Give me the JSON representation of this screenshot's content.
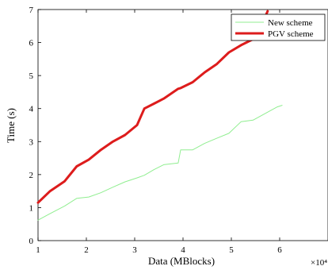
{
  "chart_data": {
    "type": "line",
    "xlabel": "Data (MBlocks)",
    "ylabel": "Time (s)",
    "x_multiplier_label": "×10⁴",
    "xlim": [
      1,
      7
    ],
    "ylim": [
      0,
      7
    ],
    "xticks": [
      1,
      2,
      3,
      4,
      5,
      6
    ],
    "yticks": [
      0,
      1,
      2,
      3,
      4,
      5,
      6,
      7
    ],
    "legend_position": "top-right",
    "grid": false,
    "series": [
      {
        "name": "New scheme",
        "color": "#90ee90",
        "stroke_width_class": "thin",
        "x": [
          1.0,
          1.25,
          1.55,
          1.8,
          2.05,
          2.3,
          2.55,
          2.8,
          3.05,
          3.2,
          3.4,
          3.6,
          3.9,
          3.95,
          4.2,
          4.45,
          4.7,
          4.95,
          5.2,
          5.45,
          5.7,
          5.95,
          6.05
        ],
        "y": [
          0.62,
          0.82,
          1.05,
          1.28,
          1.32,
          1.45,
          1.62,
          1.78,
          1.9,
          1.98,
          2.15,
          2.3,
          2.35,
          2.75,
          2.75,
          2.95,
          3.1,
          3.25,
          3.6,
          3.65,
          3.85,
          4.05,
          4.1
        ]
      },
      {
        "name": "PGV scheme",
        "color": "#dd1c1c",
        "stroke_width_class": "thick",
        "x": [
          1.0,
          1.25,
          1.55,
          1.8,
          2.05,
          2.3,
          2.55,
          2.8,
          3.05,
          3.2,
          3.4,
          3.6,
          3.9,
          3.95,
          4.2,
          4.45,
          4.7,
          4.95,
          5.2,
          5.45,
          5.6,
          5.75
        ],
        "y": [
          1.15,
          1.5,
          1.8,
          2.25,
          2.45,
          2.75,
          3.0,
          3.2,
          3.5,
          4.0,
          4.15,
          4.3,
          4.6,
          4.62,
          4.8,
          5.1,
          5.35,
          5.7,
          5.92,
          6.1,
          6.45,
          6.95
        ]
      }
    ]
  }
}
